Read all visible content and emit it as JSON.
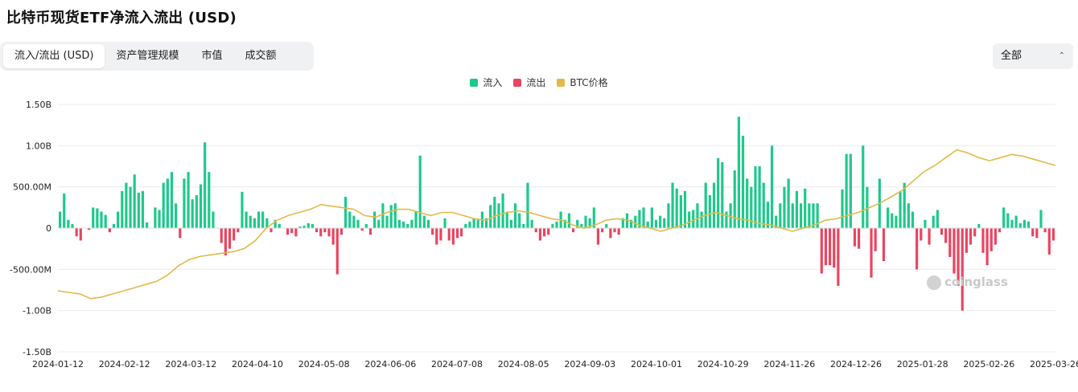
{
  "title": "比特币现货ETF净流入流出 (USD)",
  "tabs": [
    "流入/流出 (USD)",
    "资产管理规模",
    "市值",
    "成交额"
  ],
  "active_tab": 0,
  "select": {
    "value": "全部"
  },
  "watermark": "coinglass",
  "chart_data": {
    "type": "bar",
    "legend": [
      {
        "name": "流入",
        "color": "#1ec98b"
      },
      {
        "name": "流出",
        "color": "#ea4560"
      },
      {
        "name": "BTC价格",
        "color": "#e3b94a"
      }
    ],
    "legend_position": "top-center",
    "grid": true,
    "ylim": [
      -1.5,
      1.5
    ],
    "y_ticks": [
      {
        "v": 1.5,
        "label": "1.50B"
      },
      {
        "v": 1.0,
        "label": "1.00B"
      },
      {
        "v": 0.5,
        "label": "500.00M"
      },
      {
        "v": 0,
        "label": "0"
      },
      {
        "v": -0.5,
        "label": "-500.00M"
      },
      {
        "v": -1.0,
        "label": "-1.00B"
      },
      {
        "v": -1.5,
        "label": "-1.50B"
      }
    ],
    "x_ticks": [
      "2024-01-12",
      "2024-02-12",
      "2024-03-12",
      "2024-04-10",
      "2024-05-08",
      "2024-06-06",
      "2024-07-08",
      "2024-08-05",
      "2024-09-03",
      "2024-10-01",
      "2024-10-29",
      "2024-11-26",
      "2024-12-26",
      "2025-01-28",
      "2025-02-26",
      "2025-03-26"
    ],
    "flows_billion_usd": [
      0.2,
      0.42,
      0.1,
      0.05,
      -0.1,
      -0.15,
      0,
      -0.02,
      0.25,
      0.24,
      0.2,
      0.16,
      -0.05,
      0.05,
      0.2,
      0.45,
      0.55,
      0.5,
      0.65,
      0.43,
      0.45,
      0.07,
      0,
      0.25,
      0.22,
      0.55,
      0.6,
      0.68,
      0.3,
      -0.12,
      0.6,
      0.68,
      0.35,
      0.4,
      0.53,
      1.04,
      0.68,
      0.2,
      0,
      -0.18,
      -0.33,
      -0.25,
      -0.15,
      -0.05,
      0.44,
      0.2,
      0.15,
      0.12,
      0.2,
      0.2,
      0.12,
      -0.05,
      0.1,
      0.05,
      0,
      -0.08,
      -0.06,
      -0.1,
      0.02,
      0.03,
      0.06,
      0.05,
      -0.05,
      -0.1,
      -0.05,
      -0.1,
      -0.2,
      -0.56,
      -0.08,
      0.38,
      0.2,
      0.15,
      0.1,
      -0.03,
      0.05,
      -0.08,
      0.2,
      0.1,
      0.3,
      0.15,
      0.28,
      0.3,
      0.1,
      0.08,
      0.05,
      0.1,
      0.2,
      0.88,
      0.15,
      0.1,
      -0.08,
      -0.2,
      -0.15,
      0.12,
      -0.15,
      -0.2,
      -0.12,
      -0.1,
      0.05,
      0.08,
      0.12,
      0.1,
      0.2,
      0.12,
      0.28,
      0.38,
      0.3,
      0.42,
      0.2,
      0.1,
      0.3,
      0.18,
      0.05,
      0.55,
      0.1,
      -0.05,
      -0.15,
      -0.1,
      -0.08,
      0.05,
      0.08,
      0.2,
      0.1,
      0.18,
      -0.05,
      0.1,
      0.05,
      0.15,
      0.12,
      0.25,
      -0.2,
      -0.05,
      0.05,
      -0.12,
      -0.05,
      -0.08,
      0.12,
      0.18,
      0.1,
      0.15,
      0.22,
      0.25,
      0.08,
      0.25,
      0.1,
      0.15,
      0.12,
      0.3,
      0.55,
      0.48,
      0.4,
      0.45,
      0.2,
      0.22,
      0.3,
      0.2,
      0.55,
      0.4,
      0.55,
      0.85,
      0.8,
      0.2,
      0.3,
      0.7,
      1.35,
      1.12,
      0.6,
      0.5,
      0.75,
      0.75,
      0.55,
      0.32,
      1.0,
      0.15,
      0.3,
      0.5,
      0.6,
      0.3,
      0.45,
      0.3,
      0.48,
      0.3,
      0.3,
      0.3,
      -0.55,
      -0.45,
      -0.45,
      -0.48,
      -0.7,
      0.47,
      0.9,
      0.9,
      -0.22,
      -0.25,
      1.0,
      0.5,
      -0.6,
      -0.28,
      0.6,
      -0.4,
      0.25,
      0.18,
      0.15,
      0.45,
      0.55,
      0.3,
      0.2,
      -0.5,
      -0.15,
      0.1,
      -0.2,
      0.15,
      0.22,
      -0.08,
      -0.18,
      -0.35,
      -0.55,
      -0.7,
      -1.0,
      -0.3,
      -0.2,
      -0.1,
      0.05,
      -0.3,
      -0.45,
      -0.28,
      -0.2,
      -0.05,
      0.25,
      0.18,
      0.1,
      0.15,
      0.06,
      0.1,
      0.08,
      -0.1,
      -0.12,
      0.22,
      -0.05,
      -0.32,
      -0.15
    ],
    "btc_price_curve_relative": [
      0.1,
      0.09,
      0.08,
      0.05,
      0.06,
      0.08,
      0.1,
      0.12,
      0.14,
      0.16,
      0.2,
      0.26,
      0.3,
      0.32,
      0.33,
      0.34,
      0.35,
      0.37,
      0.42,
      0.5,
      0.55,
      0.58,
      0.6,
      0.62,
      0.65,
      0.64,
      0.63,
      0.62,
      0.58,
      0.57,
      0.6,
      0.62,
      0.62,
      0.6,
      0.58,
      0.6,
      0.6,
      0.58,
      0.56,
      0.55,
      0.58,
      0.6,
      0.61,
      0.6,
      0.58,
      0.56,
      0.55,
      0.52,
      0.5,
      0.52,
      0.55,
      0.56,
      0.55,
      0.52,
      0.5,
      0.48,
      0.5,
      0.52,
      0.55,
      0.58,
      0.6,
      0.58,
      0.56,
      0.55,
      0.53,
      0.52,
      0.5,
      0.48,
      0.5,
      0.52,
      0.55,
      0.56,
      0.58,
      0.6,
      0.63,
      0.66,
      0.7,
      0.74,
      0.8,
      0.86,
      0.9,
      0.95,
      1.0,
      0.98,
      0.95,
      0.93,
      0.95,
      0.97,
      0.96,
      0.94,
      0.92,
      0.9
    ]
  }
}
